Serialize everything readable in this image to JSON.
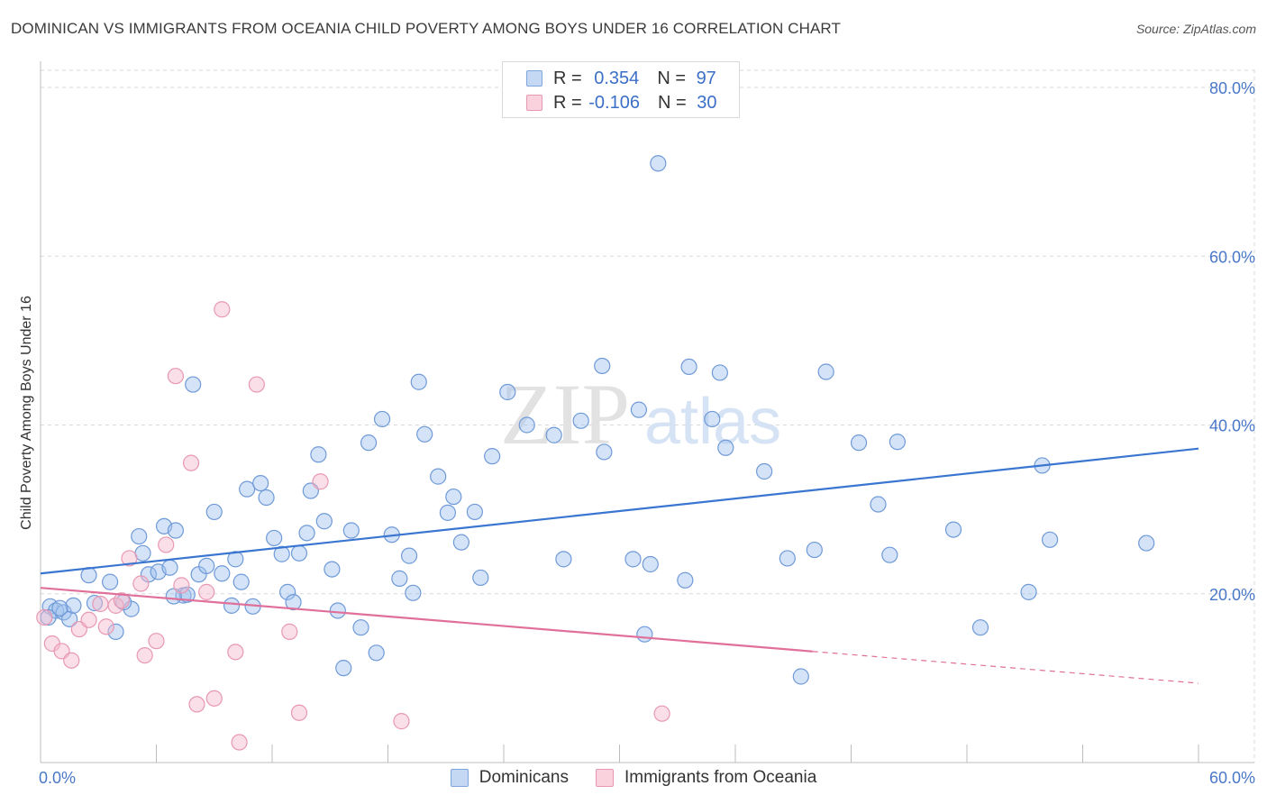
{
  "title": "DOMINICAN VS IMMIGRANTS FROM OCEANIA CHILD POVERTY AMONG BOYS UNDER 16 CORRELATION CHART",
  "source": "Source: ZipAtlas.com",
  "watermark": {
    "zip": "ZIP",
    "atlas": "atlas"
  },
  "legend": {
    "rows": [
      {
        "r_label": "R =",
        "r_value": "0.354",
        "n_label": "N =",
        "n_value": "97",
        "color": "#a8c6ef"
      },
      {
        "r_label": "R =",
        "r_value": "-0.106",
        "n_label": "N =",
        "n_value": "30",
        "color": "#f5b8cb"
      }
    ]
  },
  "bottom_legend": [
    {
      "label": "Dominicans",
      "color": "#a8c6ef"
    },
    {
      "label": "Immigrants from Oceania",
      "color": "#f5b8cb"
    }
  ],
  "colors": {
    "blue_point_fill": "rgba(160,194,238,0.45)",
    "blue_point_stroke": "#6f9ad8",
    "pink_point_fill": "rgba(245,184,203,0.45)",
    "pink_point_stroke": "#e898b2",
    "blue_line": "#3a76d0",
    "pink_line": "#e0709a",
    "grid": "#d8d8d8",
    "tick_text": "#4a78c8"
  },
  "chart_data": {
    "type": "scatter",
    "title": "DOMINICAN VS IMMIGRANTS FROM OCEANIA CHILD POVERTY AMONG BOYS UNDER 16 CORRELATION CHART",
    "xlabel": "",
    "ylabel": "Child Poverty Among Boys Under 16",
    "xlim": [
      0,
      60
    ],
    "ylim": [
      0,
      80
    ],
    "x_tick_labels": [
      "0.0%",
      "60.0%"
    ],
    "y_ticks": [
      20,
      40,
      60,
      80
    ],
    "y_tick_labels": [
      "20.0%",
      "40.0%",
      "60.0%",
      "80.0%"
    ],
    "grid": true,
    "legend_position": "top-center",
    "series": [
      {
        "name": "Dominicans",
        "trend": {
          "x": [
            0,
            60
          ],
          "y": [
            22.4,
            37.2
          ],
          "dashed_from": null
        },
        "points": [
          [
            0.5,
            18.5
          ],
          [
            0.8,
            18.0
          ],
          [
            1.2,
            17.8
          ],
          [
            1.5,
            17.0
          ],
          [
            1.7,
            18.6
          ],
          [
            2.5,
            22.2
          ],
          [
            2.8,
            18.9
          ],
          [
            3.6,
            21.4
          ],
          [
            3.9,
            15.5
          ],
          [
            4.7,
            18.2
          ],
          [
            5.1,
            26.8
          ],
          [
            5.3,
            24.8
          ],
          [
            5.6,
            22.3
          ],
          [
            6.1,
            22.6
          ],
          [
            6.4,
            28.0
          ],
          [
            6.7,
            23.1
          ],
          [
            7.0,
            27.5
          ],
          [
            7.4,
            19.8
          ],
          [
            7.6,
            19.9
          ],
          [
            7.9,
            44.8
          ],
          [
            8.2,
            22.3
          ],
          [
            8.6,
            23.3
          ],
          [
            9.0,
            29.7
          ],
          [
            9.4,
            22.4
          ],
          [
            9.9,
            18.6
          ],
          [
            10.1,
            24.1
          ],
          [
            10.4,
            21.4
          ],
          [
            10.7,
            32.4
          ],
          [
            11.0,
            18.5
          ],
          [
            11.4,
            33.1
          ],
          [
            11.7,
            31.4
          ],
          [
            12.1,
            26.6
          ],
          [
            12.5,
            24.7
          ],
          [
            12.8,
            20.2
          ],
          [
            13.1,
            19.0
          ],
          [
            13.4,
            24.8
          ],
          [
            13.8,
            27.2
          ],
          [
            14.0,
            32.2
          ],
          [
            14.4,
            36.5
          ],
          [
            14.7,
            28.6
          ],
          [
            15.1,
            22.9
          ],
          [
            15.4,
            18.0
          ],
          [
            15.7,
            11.2
          ],
          [
            16.1,
            27.5
          ],
          [
            16.6,
            16.0
          ],
          [
            17.0,
            37.9
          ],
          [
            17.4,
            13.0
          ],
          [
            17.7,
            40.7
          ],
          [
            18.2,
            27.0
          ],
          [
            18.6,
            21.8
          ],
          [
            19.1,
            24.5
          ],
          [
            19.3,
            20.1
          ],
          [
            19.6,
            45.1
          ],
          [
            19.9,
            38.9
          ],
          [
            20.6,
            33.9
          ],
          [
            21.1,
            29.6
          ],
          [
            21.4,
            31.5
          ],
          [
            21.8,
            26.1
          ],
          [
            22.5,
            29.7
          ],
          [
            22.8,
            21.9
          ],
          [
            23.4,
            36.3
          ],
          [
            24.2,
            43.9
          ],
          [
            25.2,
            40.0
          ],
          [
            26.6,
            38.8
          ],
          [
            27.1,
            24.1
          ],
          [
            28.0,
            40.5
          ],
          [
            29.1,
            47.0
          ],
          [
            29.2,
            36.8
          ],
          [
            30.7,
            24.1
          ],
          [
            31.0,
            41.8
          ],
          [
            31.3,
            15.2
          ],
          [
            31.6,
            23.5
          ],
          [
            32.0,
            71.0
          ],
          [
            33.4,
            21.6
          ],
          [
            33.6,
            46.9
          ],
          [
            34.8,
            40.7
          ],
          [
            35.2,
            46.2
          ],
          [
            35.5,
            37.3
          ],
          [
            37.5,
            34.5
          ],
          [
            38.7,
            24.2
          ],
          [
            39.4,
            10.2
          ],
          [
            40.1,
            25.2
          ],
          [
            40.7,
            46.3
          ],
          [
            42.4,
            37.9
          ],
          [
            43.4,
            30.6
          ],
          [
            44.0,
            24.6
          ],
          [
            44.4,
            38.0
          ],
          [
            47.3,
            27.6
          ],
          [
            48.7,
            16.0
          ],
          [
            51.2,
            20.2
          ],
          [
            51.9,
            35.2
          ],
          [
            52.3,
            26.4
          ],
          [
            57.3,
            26.0
          ],
          [
            0.4,
            17.2
          ],
          [
            1.0,
            18.3
          ],
          [
            4.3,
            19.0
          ],
          [
            6.9,
            19.7
          ]
        ]
      },
      {
        "name": "Immigrants from Oceania",
        "trend": {
          "x": [
            0,
            60
          ],
          "y": [
            20.7,
            9.4
          ],
          "dashed_from": 40
        },
        "points": [
          [
            0.2,
            17.2
          ],
          [
            0.6,
            14.1
          ],
          [
            1.1,
            13.2
          ],
          [
            1.6,
            12.1
          ],
          [
            2.0,
            15.8
          ],
          [
            2.5,
            16.9
          ],
          [
            3.1,
            18.8
          ],
          [
            3.4,
            16.1
          ],
          [
            3.9,
            18.6
          ],
          [
            4.2,
            19.2
          ],
          [
            4.6,
            24.2
          ],
          [
            5.2,
            21.2
          ],
          [
            5.4,
            12.7
          ],
          [
            6.0,
            14.4
          ],
          [
            6.5,
            25.8
          ],
          [
            7.0,
            45.8
          ],
          [
            7.3,
            21.0
          ],
          [
            7.8,
            35.5
          ],
          [
            8.1,
            6.9
          ],
          [
            8.6,
            20.2
          ],
          [
            9.0,
            7.6
          ],
          [
            9.4,
            53.7
          ],
          [
            10.1,
            13.1
          ],
          [
            10.3,
            2.4
          ],
          [
            11.2,
            44.8
          ],
          [
            12.9,
            15.5
          ],
          [
            13.4,
            5.9
          ],
          [
            14.5,
            33.3
          ],
          [
            18.7,
            4.9
          ],
          [
            32.2,
            5.8
          ]
        ]
      }
    ]
  }
}
